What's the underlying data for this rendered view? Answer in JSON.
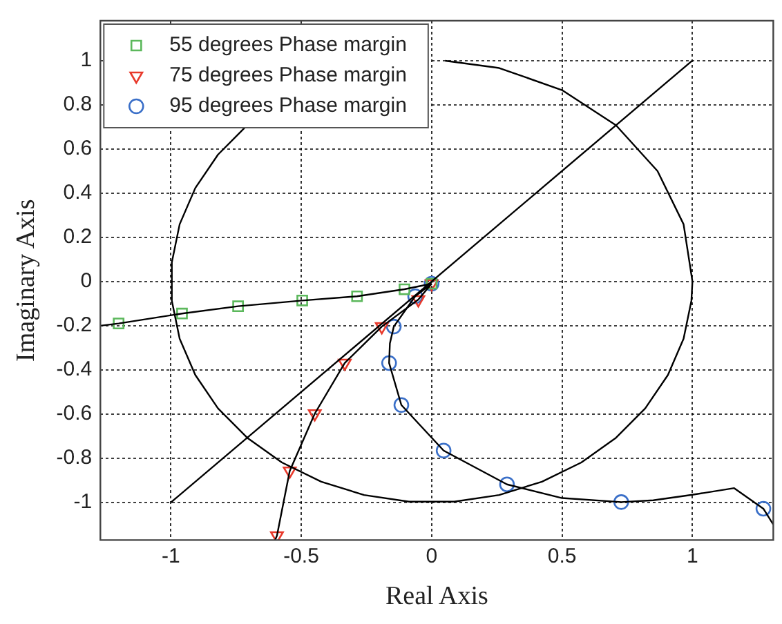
{
  "chart_data": {
    "type": "scatter",
    "xlabel": "Real Axis",
    "ylabel": "Imaginary Axis",
    "xlim": [
      -1.27,
      1.31
    ],
    "ylim": [
      -1.17,
      1.18
    ],
    "xticks": [
      -1,
      -0.5,
      0,
      0.5,
      1
    ],
    "yticks": [
      -1,
      -0.8,
      -0.6,
      -0.4,
      -0.2,
      0,
      0.2,
      0.4,
      0.6,
      0.8,
      1
    ],
    "grid": true,
    "legend": "top left",
    "line_style": "solid",
    "series": [
      {
        "type": "line",
        "color": "#000000",
        "marker": "none",
        "x": [
          -1.27,
          -1.2,
          -0.957,
          -0.742,
          -0.496,
          -0.286,
          -0.104,
          0
        ],
        "values": [
          -0.2,
          -0.19,
          -0.145,
          -0.112,
          -0.086,
          -0.067,
          -0.035,
          -0.01
        ]
      },
      {
        "type": "line",
        "color": "#000000",
        "marker": "none",
        "x": [
          0,
          -0.051,
          -0.191,
          -0.333,
          -0.448,
          -0.544,
          -0.593,
          -0.6
        ],
        "values": [
          -0.01,
          -0.082,
          -0.204,
          -0.369,
          -0.598,
          -0.857,
          -1.15,
          -1.17
        ]
      },
      {
        "type": "line",
        "color": "#000000",
        "marker": "none",
        "x": [
          0,
          -0.063,
          -0.145,
          -0.16,
          -0.163,
          -0.116,
          0.046,
          0.289,
          0.5,
          0.727,
          0.85,
          1.0,
          1.16,
          1.272,
          1.31
        ],
        "values": [
          -0.01,
          -0.067,
          -0.204,
          -0.28,
          -0.369,
          -0.559,
          -0.765,
          -0.918,
          -0.98,
          -0.998,
          -0.99,
          -0.965,
          -0.935,
          -1.028,
          -1.1
        ]
      },
      {
        "type": "line",
        "color": "#000000",
        "marker": "none",
        "x": [
          -1,
          1
        ],
        "values": [
          -1,
          1
        ]
      },
      {
        "type": "line",
        "color": "#000000",
        "marker": "none",
        "x": [
          1,
          0.966,
          0.866,
          0.707,
          0.5,
          0.259,
          0.052,
          null,
          -0.707,
          -0.819,
          -0.906,
          -0.966,
          -0.996,
          -0.996,
          -0.966,
          -0.906,
          -0.819,
          -0.707,
          -0.574,
          -0.423,
          -0.259,
          -0.087,
          0.087,
          0.259,
          0.423,
          0.574,
          0.707,
          0.819,
          0.906,
          0.966,
          0.996,
          1
        ],
        "values": [
          0,
          0.259,
          0.5,
          0.707,
          0.866,
          0.966,
          0.999,
          null,
          0.707,
          0.574,
          0.423,
          0.259,
          0.087,
          -0.087,
          -0.259,
          -0.423,
          -0.574,
          -0.707,
          -0.819,
          -0.906,
          -0.966,
          -0.996,
          -0.996,
          -0.966,
          -0.906,
          -0.819,
          -0.707,
          -0.574,
          -0.423,
          -0.259,
          -0.087,
          0
        ]
      },
      {
        "name": "55 degrees Phase margin",
        "type": "scatter",
        "color": "#5cb85c",
        "marker": "square",
        "x": [
          -1.2,
          -0.957,
          -0.742,
          -0.496,
          -0.286,
          -0.104,
          0
        ],
        "values": [
          -0.19,
          -0.145,
          -0.112,
          -0.086,
          -0.067,
          -0.035,
          -0.01
        ]
      },
      {
        "name": "75 degrees Phase margin",
        "type": "scatter",
        "color": "#e8392b",
        "marker": "triangle",
        "x": [
          -0.593,
          -0.544,
          -0.448,
          -0.333,
          -0.191,
          -0.051,
          0
        ],
        "values": [
          -1.15,
          -0.857,
          -0.598,
          -0.369,
          -0.204,
          -0.082,
          -0.01
        ]
      },
      {
        "name": "95 degrees Phase margin",
        "type": "scatter",
        "color": "#3a6fc8",
        "marker": "circle",
        "x": [
          0,
          -0.063,
          -0.145,
          -0.163,
          -0.116,
          0.046,
          0.289,
          0.727,
          1.272
        ],
        "values": [
          -0.01,
          -0.067,
          -0.204,
          -0.369,
          -0.559,
          -0.765,
          -0.918,
          -0.998,
          -1.028
        ]
      }
    ]
  }
}
